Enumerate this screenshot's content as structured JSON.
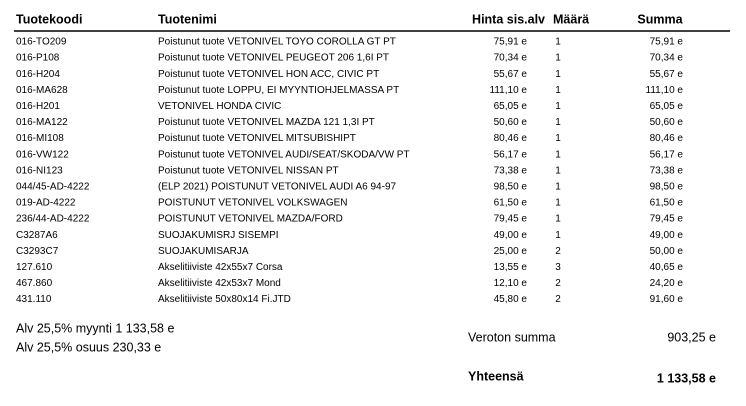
{
  "table": {
    "header": [
      "Tuotekoodi",
      "Tuotenimi",
      "Hinta sis.alv",
      "Määrä",
      "Summa"
    ],
    "rows": [
      [
        "016-TO209",
        "Poistunut tuote VETONIVEL TOYO COROLLA GT PT",
        "75,91 e",
        "1",
        "75,91 e"
      ],
      [
        "016-P108",
        "Poistunut tuote VETONIVEL PEUGEOT 206 1,6I PT",
        "70,34 e",
        "1",
        "70,34 e"
      ],
      [
        "016-H204",
        "Poistunut tuote VETONIVEL HON ACC, CIVIC PT",
        "55,67 e",
        "1",
        "55,67 e"
      ],
      [
        "016-MA628",
        "Poistunut tuote LOPPU, EI MYYNTIOHJELMASSA PT",
        "111,10 e",
        "1",
        "111,10 e"
      ],
      [
        "016-H201",
        "VETONIVEL HONDA CIVIC",
        "65,05 e",
        "1",
        "65,05 e"
      ],
      [
        "016-MA122",
        "Poistunut tuote VETONIVEL MAZDA 121 1,3I PT",
        "50,60 e",
        "1",
        "50,60 e"
      ],
      [
        "016-MI108",
        "Poistunut tuote VETONIVEL MITSUBISHIPT",
        "80,46 e",
        "1",
        "80,46 e"
      ],
      [
        "016-VW122",
        "Poistunut tuote VETONIVEL AUDI/SEAT/SKODA/VW PT",
        "56,17 e",
        "1",
        "56,17 e"
      ],
      [
        "016-NI123",
        "Poistunut tuote VETONIVEL NISSAN PT",
        "73,38 e",
        "1",
        "73,38 e"
      ],
      [
        "044/45-AD-4222",
        "(ELP 2021) POISTUNUT VETONIVEL AUDI A6 94-97",
        "98,50 e",
        "1",
        "98,50 e"
      ],
      [
        "019-AD-4222",
        "POISTUNUT VETONIVEL VOLKSWAGEN",
        "61,50 e",
        "1",
        "61,50 e"
      ],
      [
        "236/44-AD-4222",
        "POISTUNUT VETONIVEL MAZDA/FORD",
        "79,45 e",
        "1",
        "79,45 e"
      ],
      [
        "C3287A6",
        "SUOJAKUMISRJ SISEMPI",
        "49,00 e",
        "1",
        "49,00 e"
      ],
      [
        "C3293C7",
        "SUOJAKUMISARJA",
        "25,00 e",
        "2",
        "50,00 e"
      ],
      [
        "127.610",
        "Akselitiiviste 42x55x7 Corsa",
        "13,55 e",
        "3",
        "40,65 e"
      ],
      [
        "467.860",
        "Akselitiiviste 42x53x7 Mond",
        "12,10 e",
        "2",
        "24,20 e"
      ],
      [
        "431.110",
        "Akselitiiviste 50x80x14 Fi.JTD",
        "45,80 e",
        "2",
        "91,60 e"
      ]
    ]
  },
  "footer": {
    "vat_sales": "Alv 25,5% myynti 1 133,58 e",
    "vat_share": "Alv 25,5% osuus 230,33 e",
    "net_label": "Veroton summa",
    "net_value": "903,25 e",
    "total_label": "Yhteensä",
    "total_value": "1 133,58 e"
  }
}
